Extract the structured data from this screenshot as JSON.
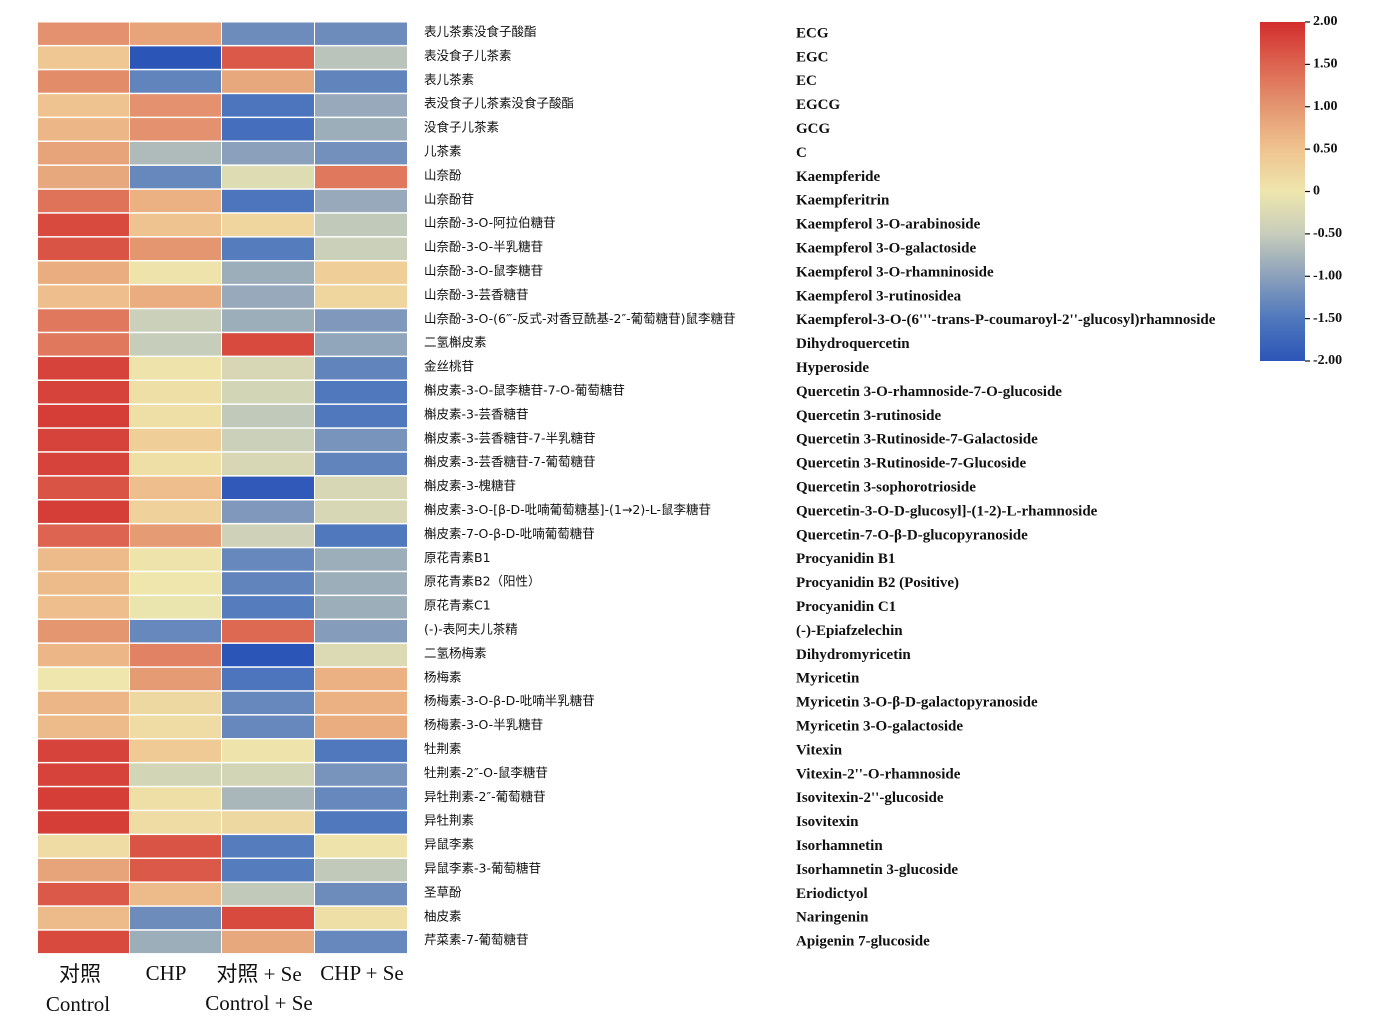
{
  "chart_data": {
    "type": "heatmap",
    "columns": [
      {
        "cn": "对照",
        "en": "Control"
      },
      {
        "cn": "",
        "en": "CHP"
      },
      {
        "cn": "对照 + Se",
        "en": "Control + Se"
      },
      {
        "cn": "",
        "en": "CHP + Se"
      }
    ],
    "rows": [
      {
        "cn": "表儿茶素没食子酸酯",
        "en": "ECG",
        "values": [
          1.05,
          0.85,
          -1.25,
          -1.25
        ]
      },
      {
        "cn": "表没食子儿茶素",
        "en": "EGC",
        "values": [
          0.45,
          -2.0,
          1.6,
          -0.6
        ]
      },
      {
        "cn": "表儿茶素",
        "en": "EC",
        "values": [
          1.1,
          -1.35,
          0.8,
          -1.35
        ]
      },
      {
        "cn": "表没食子儿茶素没食子酸酯",
        "en": "EGCG",
        "values": [
          0.5,
          1.05,
          -1.55,
          -0.9
        ]
      },
      {
        "cn": "没食子儿茶素",
        "en": "GCG",
        "values": [
          0.65,
          1.05,
          -1.65,
          -0.85
        ]
      },
      {
        "cn": "儿茶素",
        "en": "C",
        "values": [
          0.85,
          -0.7,
          -1.0,
          -1.2
        ]
      },
      {
        "cn": "山奈酚",
        "en": "Kaempferide",
        "values": [
          0.8,
          -1.3,
          -0.2,
          1.3
        ]
      },
      {
        "cn": "山奈酚苷",
        "en": "Kaempferitrin",
        "values": [
          1.35,
          0.7,
          -1.55,
          -0.9
        ]
      },
      {
        "cn": "山奈酚-3-O-阿拉伯糖苷",
        "en": "Kaempferol 3-O-arabinoside",
        "values": [
          1.75,
          0.5,
          0.25,
          -0.55
        ]
      },
      {
        "cn": "山奈酚-3-O-半乳糖苷",
        "en": "Kaempferol 3-O-galactoside",
        "values": [
          1.65,
          1.0,
          -1.45,
          -0.45
        ]
      },
      {
        "cn": "山奈酚-3-O-鼠李糖苷",
        "en": "Kaempferol 3-O-rhamninoside",
        "values": [
          0.75,
          0.05,
          -0.85,
          0.35
        ]
      },
      {
        "cn": "山奈酚-3-芸香糖苷",
        "en": "Kaempferol 3-rutinosidea",
        "values": [
          0.55,
          0.75,
          -0.9,
          0.25
        ]
      },
      {
        "cn": "山奈酚-3-O-(6‴-反式-对香豆酰基-2″-葡萄糖苷)鼠李糖苷",
        "en": "Kaempferol-3-O-(6'''-trans-P-coumaroyl-2''-glucosyl)rhamnoside",
        "values": [
          1.3,
          -0.45,
          -0.85,
          -1.1
        ]
      },
      {
        "cn": "二氢槲皮素",
        "en": "Dihydroquercetin",
        "values": [
          1.3,
          -0.5,
          1.75,
          -0.95
        ]
      },
      {
        "cn": "金丝桃苷",
        "en": "Hyperoside",
        "values": [
          1.8,
          0.05,
          -0.3,
          -1.35
        ]
      },
      {
        "cn": "槲皮素-3-O-鼠李糖苷-7-O-葡萄糖苷",
        "en": "Quercetin 3-O-rhamnoside-7-O-glucoside",
        "values": [
          1.8,
          0.1,
          -0.35,
          -1.5
        ]
      },
      {
        "cn": "槲皮素-3-芸香糖苷",
        "en": "Quercetin 3-rutinoside",
        "values": [
          1.85,
          0.1,
          -0.55,
          -1.5
        ]
      },
      {
        "cn": "槲皮素-3-芸香糖苷-7-半乳糖苷",
        "en": "Quercetin 3-Rutinoside-7-Galactoside",
        "values": [
          1.8,
          0.35,
          -0.45,
          -1.15
        ]
      },
      {
        "cn": "槲皮素-3-芸香糖苷-7-葡萄糖苷",
        "en": "Quercetin 3-Rutinoside-7-Glucoside",
        "values": [
          1.8,
          0.1,
          -0.3,
          -1.35
        ]
      },
      {
        "cn": "槲皮素-3-槐糖苷",
        "en": "Quercetin 3-sophorotrioside",
        "values": [
          1.65,
          0.55,
          -1.95,
          -0.3
        ]
      },
      {
        "cn": "槲皮素-3-O-[β-D-吡喃葡萄糖基]-(1→2)-L-鼠李糖苷",
        "en": "Quercetin-3-O-D-glucosyl]-(1-2)-L-rhamnoside",
        "values": [
          1.85,
          0.3,
          -1.1,
          -0.3
        ]
      },
      {
        "cn": "槲皮素-7-O-β-D-吡喃葡萄糖苷",
        "en": "Quercetin-7-O-β-D-glucopyranoside",
        "values": [
          1.5,
          0.95,
          -0.4,
          -1.5
        ]
      },
      {
        "cn": "原花青素B1",
        "en": "Procyanidin B1",
        "values": [
          0.6,
          0.05,
          -1.3,
          -0.85
        ]
      },
      {
        "cn": "原花青素B2（阳性）",
        "en": "Procyanidin B2 (Positive)",
        "values": [
          0.6,
          0.0,
          -1.35,
          -0.85
        ]
      },
      {
        "cn": "原花青素C1",
        "en": "Procyanidin C1",
        "values": [
          0.55,
          -0.05,
          -1.45,
          -0.85
        ]
      },
      {
        "cn": "(-)-表阿夫儿茶精",
        "en": "(-)-Epiafzelechin",
        "values": [
          1.0,
          -1.3,
          1.45,
          -1.05
        ]
      },
      {
        "cn": "二氢杨梅素",
        "en": "Dihydromyricetin",
        "values": [
          0.65,
          1.2,
          -2.0,
          -0.25
        ]
      },
      {
        "cn": "杨梅素",
        "en": "Myricetin",
        "values": [
          0.0,
          0.95,
          -1.55,
          0.7
        ]
      },
      {
        "cn": "杨梅素-3-O-β-D-吡喃半乳糖苷",
        "en": "Myricetin 3-O-β-D-galactopyranoside",
        "values": [
          0.65,
          0.2,
          -1.3,
          0.7
        ]
      },
      {
        "cn": "杨梅素-3-O-半乳糖苷",
        "en": "Myricetin 3-O-galactoside",
        "values": [
          0.6,
          0.15,
          -1.3,
          0.75
        ]
      },
      {
        "cn": "牡荆素",
        "en": "Vitexin",
        "values": [
          1.8,
          0.4,
          0.05,
          -1.5
        ]
      },
      {
        "cn": "牡荆素-2″-O-鼠李糖苷",
        "en": "Vitexin-2''-O-rhamnoside",
        "values": [
          1.8,
          -0.35,
          -0.35,
          -1.15
        ]
      },
      {
        "cn": "异牡荆素-2″-葡萄糖苷",
        "en": "Isovitexin-2''-glucoside",
        "values": [
          1.85,
          0.1,
          -0.75,
          -1.3
        ]
      },
      {
        "cn": "异牡荆素",
        "en": "Isovitexin",
        "values": [
          1.85,
          0.15,
          0.2,
          -1.5
        ]
      },
      {
        "cn": "异鼠李素",
        "en": "Isorhamnetin",
        "values": [
          0.15,
          1.65,
          -1.45,
          0.05
        ]
      },
      {
        "cn": "异鼠李素-3-葡萄糖苷",
        "en": "Isorhamnetin 3-glucoside",
        "values": [
          0.85,
          1.6,
          -1.45,
          -0.55
        ]
      },
      {
        "cn": "圣草酚",
        "en": "Eriodictyol",
        "values": [
          1.6,
          0.6,
          -0.55,
          -1.25
        ]
      },
      {
        "cn": "柚皮素",
        "en": "Naringenin",
        "values": [
          0.6,
          -1.25,
          1.75,
          0.1
        ]
      },
      {
        "cn": "芹菜素-7-葡萄糖苷",
        "en": "Apigenin 7-glucoside",
        "values": [
          1.75,
          -0.85,
          0.8,
          -1.3
        ]
      }
    ],
    "colorbar": {
      "range": [
        -2,
        2
      ],
      "ticks": [
        "2.00",
        "1.50",
        "1.00",
        "0.50",
        "0",
        "-0.50",
        "-1.00",
        "-1.50",
        "-2.00"
      ],
      "stops": [
        {
          "value": -2.0,
          "color": "#2c55b8"
        },
        {
          "value": -1.5,
          "color": "#4f78bd"
        },
        {
          "value": -1.0,
          "color": "#8ba0bb"
        },
        {
          "value": -0.5,
          "color": "#c7cdbb"
        },
        {
          "value": 0.0,
          "color": "#eee6ad"
        },
        {
          "value": 0.5,
          "color": "#efc38f"
        },
        {
          "value": 1.0,
          "color": "#e49671"
        },
        {
          "value": 1.5,
          "color": "#dd6450"
        },
        {
          "value": 2.0,
          "color": "#d22d2c"
        }
      ]
    }
  }
}
